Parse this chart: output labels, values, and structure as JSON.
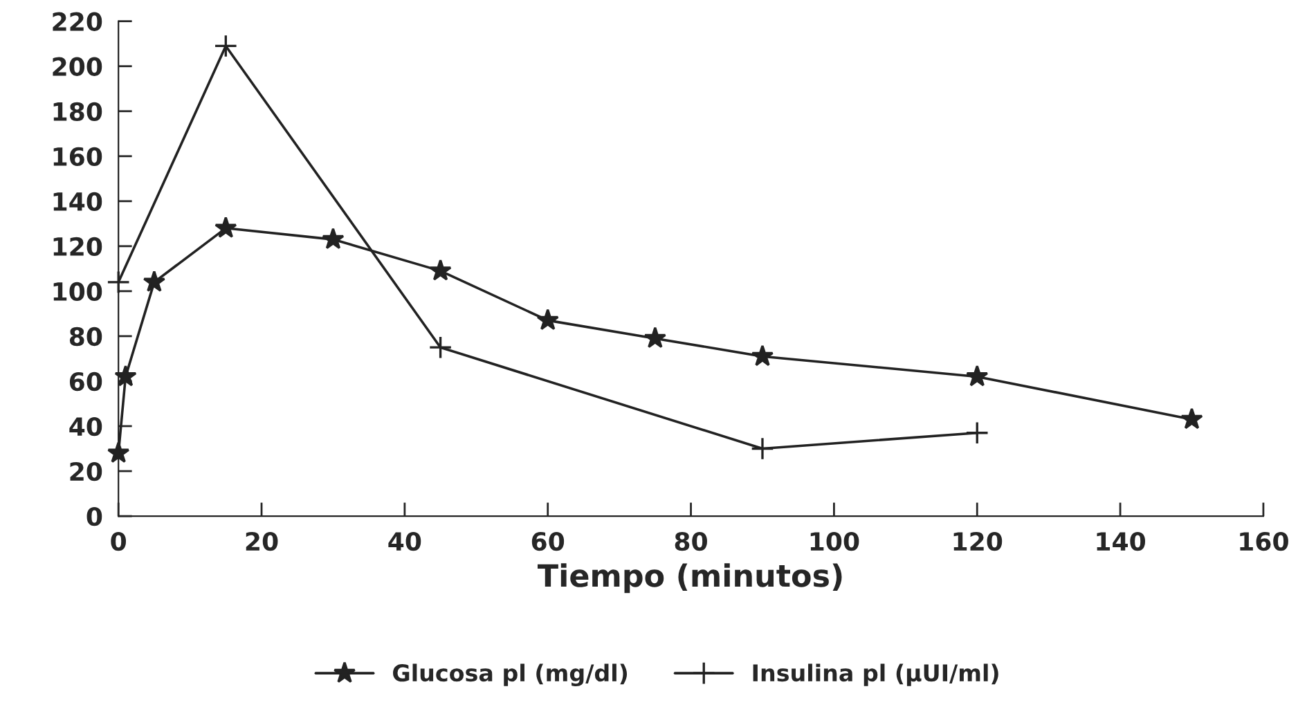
{
  "chart_data": {
    "type": "line",
    "xlabel": "Tiempo (minutos)",
    "series": [
      {
        "name": "Glucosa pl (mg/dl)",
        "color": "#222222",
        "marker": "star",
        "x": [
          0,
          1,
          5,
          15,
          30,
          45,
          60,
          75,
          90,
          120,
          150
        ],
        "values": [
          28,
          62,
          104,
          128,
          123,
          109,
          87,
          79,
          71,
          62,
          43
        ]
      },
      {
        "name": "Insulina pl (µUI/ml)",
        "color": "#222222",
        "marker": "cross",
        "x": [
          0,
          15,
          45,
          90,
          120
        ],
        "values": [
          104,
          209,
          75,
          30,
          37
        ]
      }
    ],
    "xlim": [
      0,
      160
    ],
    "xticks": [
      0,
      20,
      40,
      60,
      80,
      100,
      120,
      140,
      160
    ],
    "ylim": [
      0,
      220
    ],
    "yticks": [
      0,
      20,
      40,
      60,
      80,
      100,
      120,
      140,
      160,
      180,
      200,
      220
    ],
    "grid": false,
    "legend": "bottom",
    "line_style": "solid"
  }
}
